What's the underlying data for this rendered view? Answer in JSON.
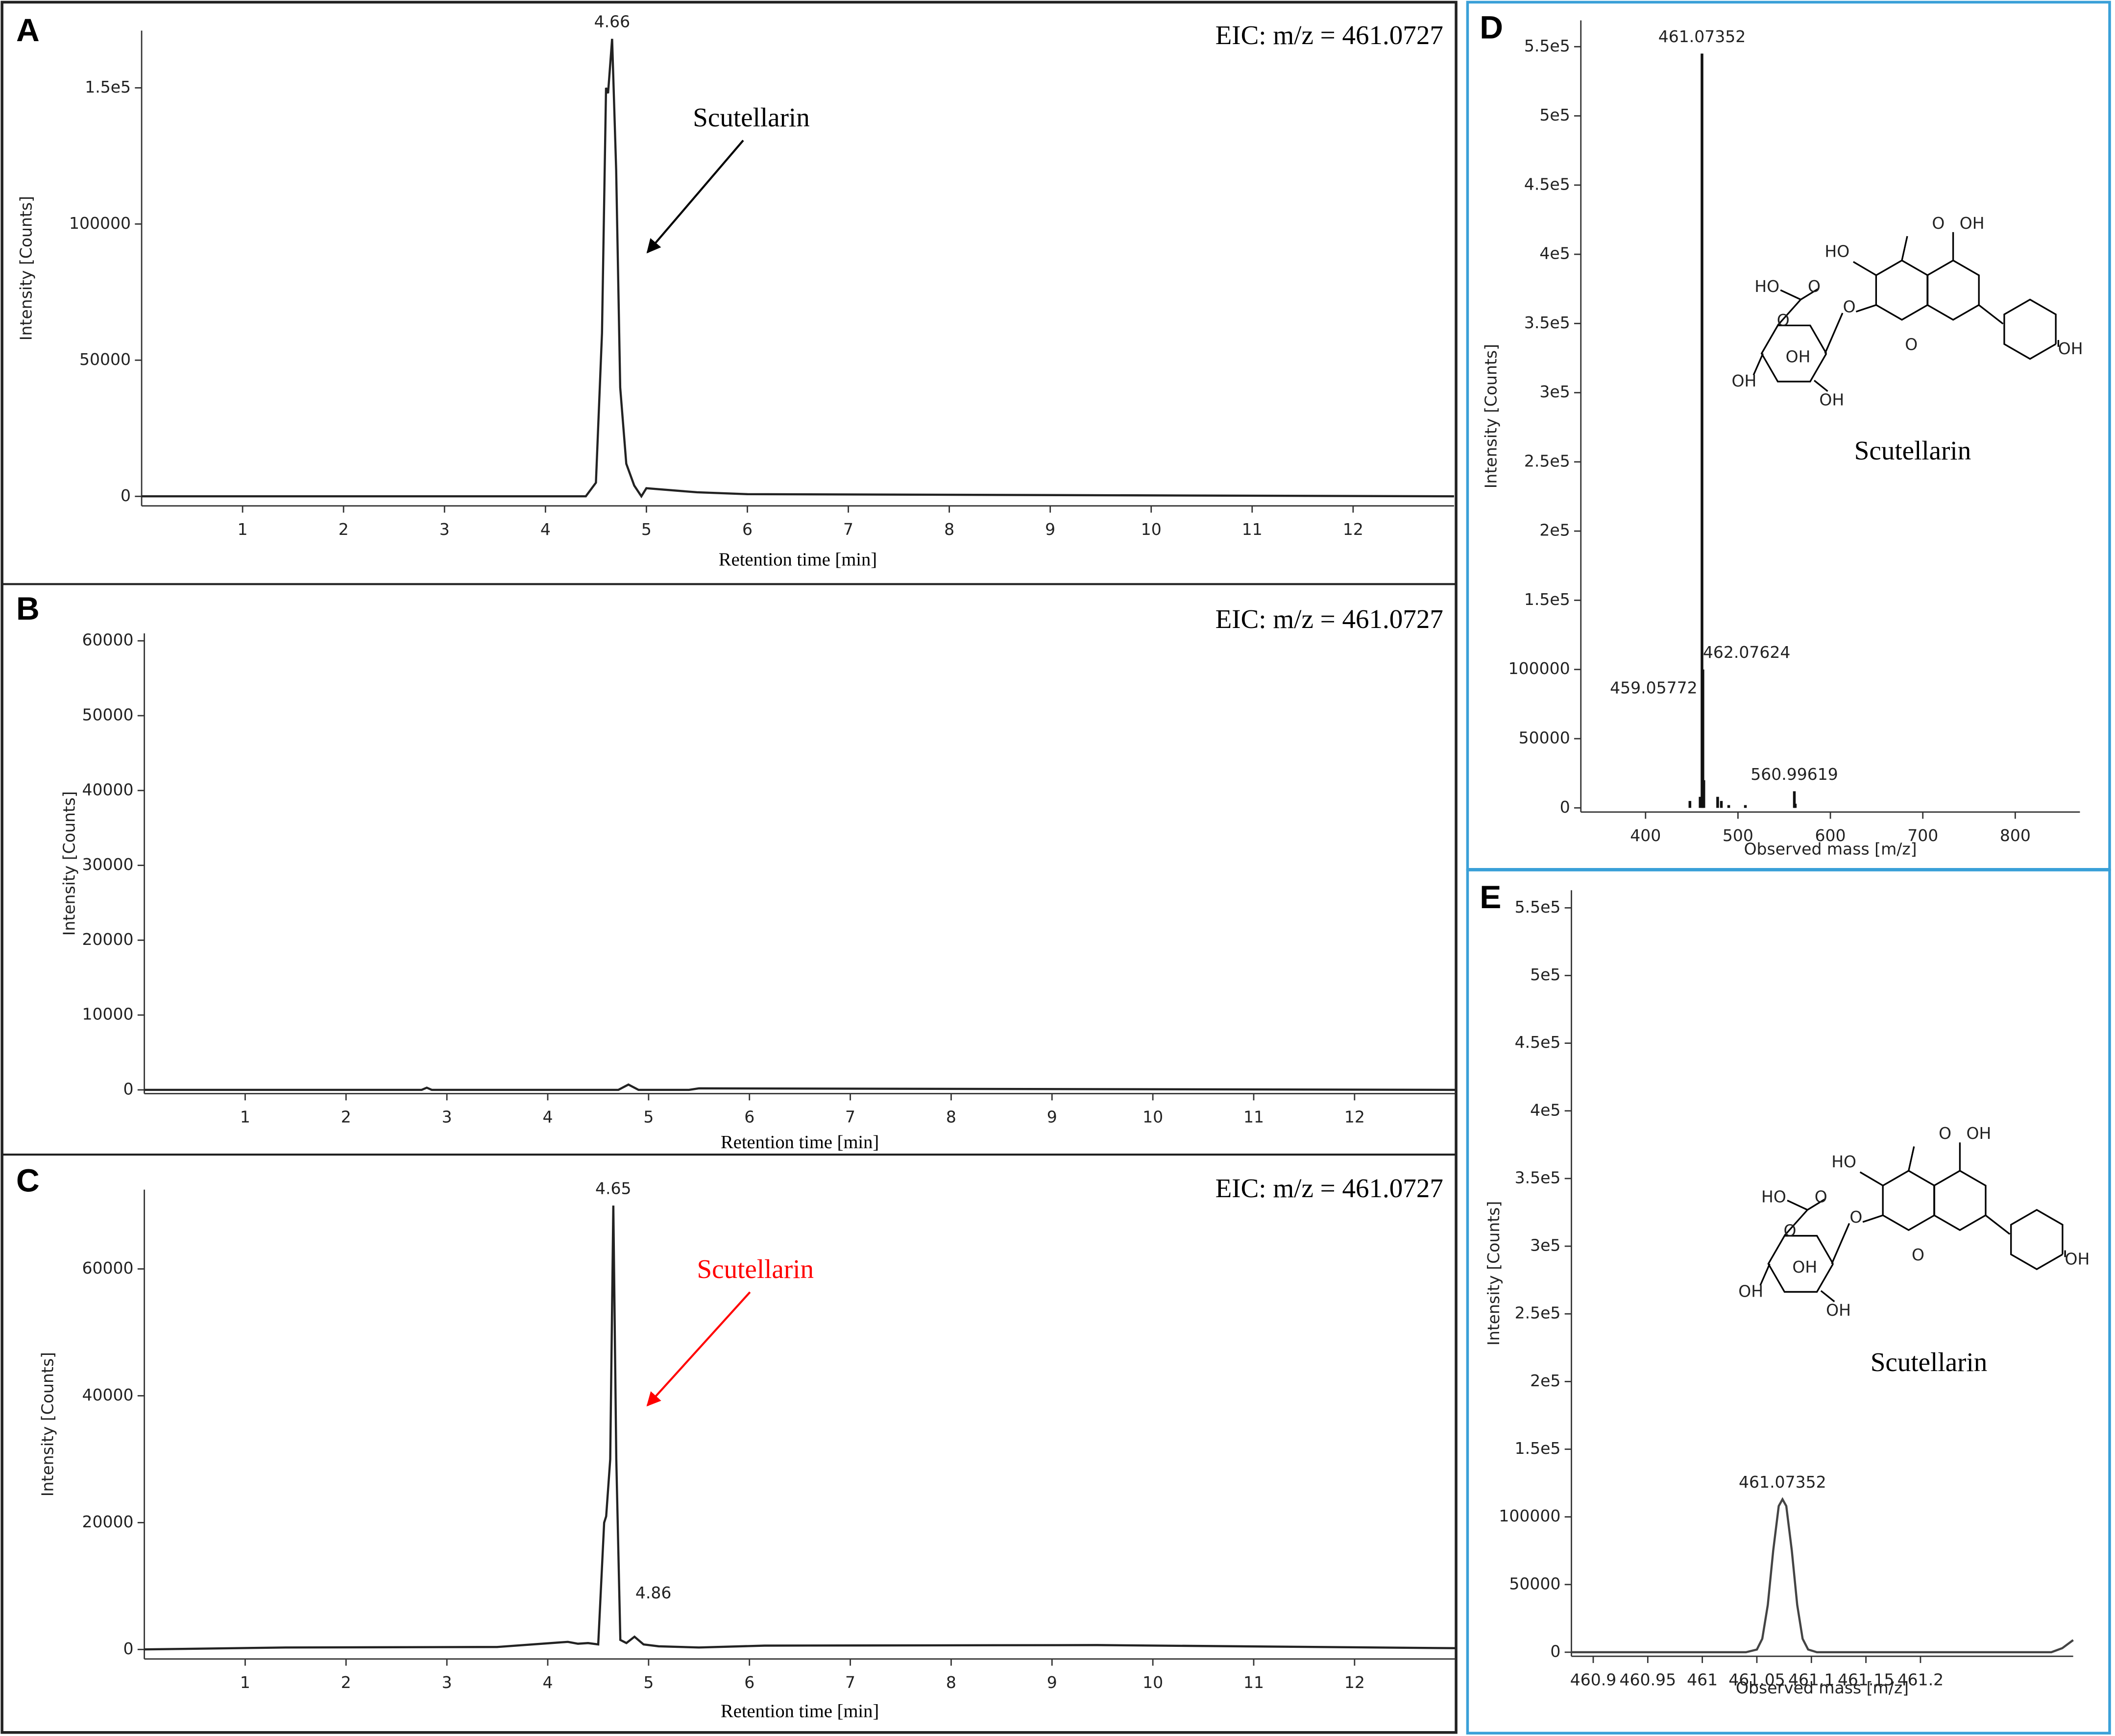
{
  "chart_data": [
    {
      "type": "line",
      "panel": "A",
      "annotation": "EIC: m/z = 461.0727",
      "label": "Scutellarin",
      "label_color": "#000000",
      "color": "#222222",
      "x_label": "Retention time [min]",
      "y_label": "Intensity [Counts]",
      "xlim": [
        0,
        13
      ],
      "ylim": [
        -3500,
        171000
      ],
      "xticks": [
        1,
        2,
        3,
        4,
        5,
        6,
        7,
        8,
        9,
        10,
        11,
        12
      ],
      "yticks": [
        0,
        50000,
        100000,
        {
          "value": 150000,
          "label": "1.5e5"
        }
      ],
      "x": [
        0,
        4.4,
        4.5,
        4.56,
        4.6,
        4.62,
        4.66,
        4.7,
        4.74,
        4.8,
        4.88,
        4.95,
        5.0,
        5.5,
        6.0,
        13
      ],
      "values": [
        0,
        0,
        5000,
        60000,
        150000,
        148000,
        168000,
        120000,
        40000,
        12000,
        4000,
        0,
        3000,
        1500,
        800,
        0
      ],
      "peak_labels": [
        {
          "x": 4.66,
          "y": 168000
        }
      ]
    },
    {
      "type": "line",
      "panel": "B",
      "annotation": "EIC: m/z = 461.0727",
      "color": "#222222",
      "x_label": "Retention time [min]",
      "y_label": "Intensity [Counts]",
      "xlim": [
        0,
        13
      ],
      "ylim": [
        -500,
        61000
      ],
      "xticks": [
        1,
        2,
        3,
        4,
        5,
        6,
        7,
        8,
        9,
        10,
        11,
        12
      ],
      "yticks": [
        0,
        10000,
        20000,
        30000,
        40000,
        50000,
        60000
      ],
      "x": [
        0,
        2.75,
        2.8,
        2.85,
        4.7,
        4.8,
        4.9,
        5.4,
        5.5,
        13
      ],
      "values": [
        0,
        0,
        300,
        0,
        0,
        700,
        0,
        0,
        200,
        0
      ]
    },
    {
      "type": "line",
      "panel": "C",
      "annotation": "EIC: m/z = 461.0727",
      "label": "Scutellarin",
      "label_color": "#ff0000",
      "color": "#222222",
      "x_label": "Retention time [min]",
      "y_label": "Intensity [Counts]",
      "xlim": [
        0,
        13
      ],
      "ylim": [
        -1500,
        72500
      ],
      "xticks": [
        1,
        2,
        3,
        4,
        5,
        6,
        7,
        8,
        9,
        10,
        11,
        12
      ],
      "yticks": [
        0,
        20000,
        40000,
        60000
      ],
      "x": [
        0,
        1.4,
        3.5,
        4.2,
        4.3,
        4.4,
        4.5,
        4.56,
        4.58,
        4.62,
        4.65,
        4.68,
        4.72,
        4.78,
        4.86,
        4.95,
        5.1,
        5.5,
        6.15,
        9.45,
        13
      ],
      "values": [
        0,
        300,
        400,
        1200,
        900,
        1000,
        800,
        20000,
        21000,
        30000,
        70000,
        30000,
        1500,
        1000,
        2000,
        800,
        500,
        300,
        600,
        700,
        200
      ],
      "peak_labels": [
        {
          "x": 4.65,
          "y": 70000
        },
        {
          "x": 4.86,
          "y": 2000
        }
      ]
    },
    {
      "type": "stem",
      "panel": "D",
      "label": "Scutellarin",
      "color": "#111111",
      "x_label": "Observed mass [m/z]",
      "y_label": "Intensity [Counts]",
      "xlim": [
        330,
        870
      ],
      "ylim": [
        -3000,
        569000
      ],
      "xticks": [
        400,
        500,
        600,
        700,
        800
      ],
      "yticks": [
        0,
        50000,
        100000,
        {
          "value": 150000,
          "label": "1.5e5"
        },
        {
          "value": 200000,
          "label": "2e5"
        },
        {
          "value": 250000,
          "label": "2.5e5"
        },
        {
          "value": 300000,
          "label": "3e5"
        },
        {
          "value": 350000,
          "label": "3.5e5"
        },
        {
          "value": 400000,
          "label": "4e5"
        },
        {
          "value": 450000,
          "label": "4.5e5"
        },
        {
          "value": 500000,
          "label": "5e5"
        },
        {
          "value": 550000,
          "label": "5.5e5"
        }
      ],
      "x": [
        448,
        459.05772,
        461.07352,
        462.07624,
        463.07,
        478,
        482,
        490,
        508,
        560.99619,
        562
      ],
      "values": [
        5000,
        8000,
        545000,
        100000,
        20000,
        8000,
        5000,
        2000,
        2000,
        12000,
        3000
      ],
      "peak_labels": [
        {
          "x": 461.07352,
          "y": 545000
        },
        {
          "x": 459.05772,
          "y": 90000
        },
        {
          "x": 462.07624,
          "y": 100000
        },
        {
          "x": 560.99619,
          "y": 12000
        }
      ],
      "structure_labels": [
        "OH",
        "O",
        "HO",
        "HO",
        "O",
        "O",
        "O",
        "O",
        "OH",
        "OH",
        "OH",
        "OH"
      ]
    },
    {
      "type": "line",
      "panel": "E",
      "label": "Scutellarin",
      "color": "#444444",
      "x_label": "Observed mass [m/z]",
      "y_label": "Intensity [Counts]",
      "xlim": [
        460.88,
        461.34
      ],
      "ylim": [
        -3000,
        563000
      ],
      "xticks": [
        460.9,
        460.95,
        461,
        461.05,
        461.1,
        461.15,
        461.2
      ],
      "yticks": [
        0,
        50000,
        100000,
        {
          "value": 150000,
          "label": "1.5e5"
        },
        {
          "value": 200000,
          "label": "2e5"
        },
        {
          "value": 250000,
          "label": "2.5e5"
        },
        {
          "value": 300000,
          "label": "3e5"
        },
        {
          "value": 350000,
          "label": "3.5e5"
        },
        {
          "value": 400000,
          "label": "4e5"
        },
        {
          "value": 450000,
          "label": "4.5e5"
        },
        {
          "value": 500000,
          "label": "5e5"
        },
        {
          "value": 550000,
          "label": "5.5e5"
        }
      ],
      "x": [
        460.88,
        461.04,
        461.05,
        461.055,
        461.06,
        461.065,
        461.07,
        461.0735,
        461.077,
        461.082,
        461.087,
        461.092,
        461.097,
        461.105,
        461.32,
        461.33,
        461.34
      ],
      "values": [
        0,
        0,
        2000,
        10000,
        35000,
        75000,
        108000,
        113000,
        108000,
        75000,
        35000,
        10000,
        2000,
        0,
        0,
        3000,
        9000
      ],
      "peak_labels": [
        {
          "x": 461.07352,
          "y": 113000
        }
      ],
      "structure_labels": [
        "OH",
        "O",
        "HO",
        "HO",
        "O",
        "O",
        "O",
        "O",
        "OH",
        "OH",
        "OH",
        "OH"
      ]
    }
  ]
}
